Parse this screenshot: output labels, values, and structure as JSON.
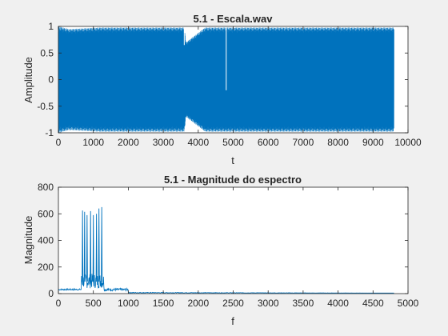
{
  "figure": {
    "background": "#f0f0f0",
    "axes_background": "#ffffff",
    "line_color": "#0072bd",
    "axis_color": "#262626"
  },
  "chart_data": [
    {
      "type": "line",
      "title": "5.1 - Escala.wav",
      "xlabel": "t",
      "ylabel": "Amplitude",
      "xlim": [
        0,
        10000
      ],
      "ylim": [
        -1,
        1
      ],
      "xticks": [
        0,
        1000,
        2000,
        3000,
        4000,
        5000,
        6000,
        7000,
        8000,
        9000,
        10000
      ],
      "yticks": [
        -1,
        -0.5,
        0,
        0.5,
        1
      ],
      "xtick_labels": [
        "0",
        "1000",
        "2000",
        "3000",
        "4000",
        "5000",
        "6000",
        "7000",
        "8000",
        "9000",
        "10000"
      ],
      "ytick_labels": [
        "-1",
        "-0.5",
        "0",
        "0.5",
        "1"
      ],
      "grid": false,
      "box": true,
      "series": [
        {
          "color": "#0072bd",
          "sample_count": 9600,
          "amplitude_envelope": {
            "x": [
              0,
              300,
              1200,
              2400,
              3600,
              3650,
              4200,
              4800,
              5600,
              7000,
              8400,
              9600
            ],
            "y": [
              1,
              0.95,
              0.98,
              0.98,
              0.98,
              0.7,
              0.98,
              0.98,
              0.98,
              0.98,
              0.98,
              0.98
            ]
          },
          "notches": [
            {
              "x": 3600,
              "y": 0.65
            },
            {
              "x": 4800,
              "y": -0.2
            }
          ]
        }
      ]
    },
    {
      "type": "line",
      "title": "5.1 - Magnitude do espectro",
      "xlabel": "f",
      "ylabel": "Magnitude",
      "xlim": [
        0,
        5000
      ],
      "ylim": [
        0,
        800
      ],
      "xticks": [
        0,
        500,
        1000,
        1500,
        2000,
        2500,
        3000,
        3500,
        4000,
        4500,
        5000
      ],
      "yticks": [
        0,
        200,
        400,
        600,
        800
      ],
      "xtick_labels": [
        "0",
        "500",
        "1000",
        "1500",
        "2000",
        "2500",
        "3000",
        "3500",
        "4000",
        "4500",
        "5000"
      ],
      "ytick_labels": [
        "0",
        "200",
        "400",
        "600",
        "800"
      ],
      "grid": false,
      "box": true,
      "series": [
        {
          "color": "#0072bd",
          "x_end": 4800,
          "peaks": [
            {
              "x": 345,
              "y": 625
            },
            {
              "x": 375,
              "y": 615
            },
            {
              "x": 410,
              "y": 590
            },
            {
              "x": 460,
              "y": 620
            },
            {
              "x": 500,
              "y": 590
            },
            {
              "x": 545,
              "y": 600
            },
            {
              "x": 580,
              "y": 640
            },
            {
              "x": 620,
              "y": 650
            }
          ],
          "baseline": 15
        }
      ]
    }
  ]
}
